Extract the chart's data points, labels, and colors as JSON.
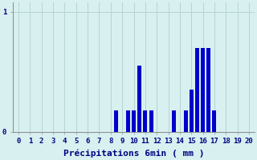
{
  "bar_positions": [
    8.5,
    9.5,
    10.0,
    10.5,
    11.0,
    11.5,
    13.5,
    14.5,
    15.0,
    15.5,
    16.0,
    16.5,
    17.0
  ],
  "values": [
    0.18,
    0.18,
    0.18,
    0.55,
    0.18,
    0.18,
    0.18,
    0.18,
    0.35,
    0.7,
    0.7,
    0.7,
    0.18
  ],
  "bar_color": "#0000cc",
  "background_color": "#d8f0f0",
  "grid_color": "#b8d4d4",
  "tick_color": "#000080",
  "xlabel": "Précipitations 6min ( mm )",
  "xlabel_color": "#000080",
  "xlabel_fontsize": 8,
  "ylim": [
    0,
    1.08
  ],
  "xlim": [
    -0.5,
    20.5
  ],
  "yticks": [
    0,
    1
  ],
  "xticks": [
    0,
    1,
    2,
    3,
    4,
    5,
    6,
    7,
    8,
    9,
    10,
    11,
    12,
    13,
    14,
    15,
    16,
    17,
    18,
    19,
    20
  ],
  "tick_fontsize": 6.5,
  "bar_width": 0.35
}
